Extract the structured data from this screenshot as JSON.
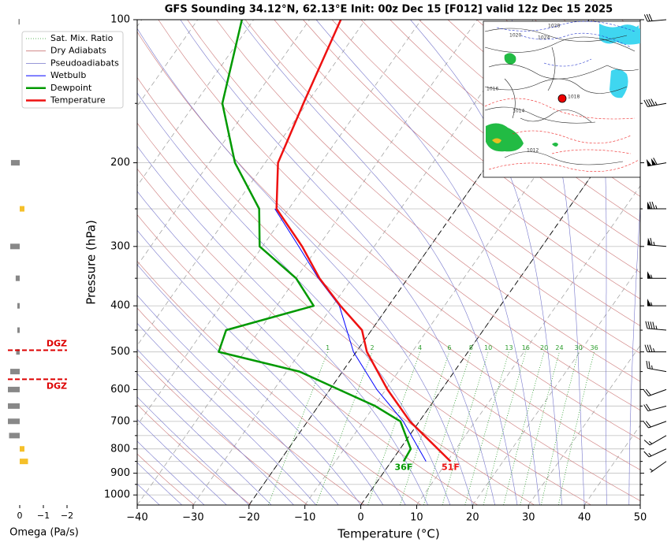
{
  "chart_data": [
    {
      "type": "skewt",
      "title": "GFS Sounding 34.12°N, 62.13°E Init: 00z Dec 15 [F012] valid 12z Dec 15 2025",
      "x_label": "Temperature (°C)",
      "y_label": "Pressure (hPa)",
      "xlim": [
        -40,
        50
      ],
      "xticks": [
        {
          "value": -40,
          "label": "−40"
        },
        {
          "value": -30,
          "label": "−30"
        },
        {
          "value": -20,
          "label": "−20"
        },
        {
          "value": -10,
          "label": "−10"
        },
        0,
        10,
        20,
        30,
        40,
        50
      ],
      "ylim": [
        1050,
        100
      ],
      "log_y": true,
      "yticks": [
        100,
        200,
        300,
        400,
        500,
        600,
        700,
        800,
        900,
        1000
      ],
      "y_minor_ticks": [
        150,
        250,
        350,
        450,
        550,
        650,
        750,
        850,
        950
      ],
      "grid": true,
      "reference_isotherms": [
        -20,
        0
      ],
      "reference_lines": [
        {
          "name": "Sat. Mix. Ratio",
          "color": "#2e9e2e",
          "style": "dotted",
          "values": [
            1,
            2,
            4,
            6,
            8,
            10,
            13,
            16,
            20,
            24,
            30,
            36
          ]
        },
        {
          "name": "Dry Adiabats",
          "color": "#cc7777",
          "style": "solid"
        },
        {
          "name": "Pseudoadiabats",
          "color": "#7777cc",
          "style": "solid"
        }
      ],
      "series": [
        {
          "name": "Wetbulb",
          "color": "#0000ff",
          "width": 1,
          "pressure": [
            850,
            700,
            600,
            500,
            400,
            350,
            300,
            250
          ],
          "values": [
            6.2,
            -2.9,
            -11.6,
            -20.5,
            -28.8,
            -36,
            -43.5,
            -52.5
          ]
        },
        {
          "name": "Dewpoint",
          "color": "#009900",
          "width": 2.5,
          "surface_label": "36F",
          "pressure": [
            850,
            800,
            700,
            650,
            600,
            550,
            500,
            450,
            400,
            350,
            300,
            250,
            200,
            150,
            100
          ],
          "values": [
            2.2,
            1.9,
            -3.4,
            -9.8,
            -18.4,
            -27.7,
            -44.6,
            -46,
            -33.4,
            -40,
            -50.5,
            -55.3,
            -65.4,
            -75.1,
            -82.1
          ]
        },
        {
          "name": "Temperature",
          "color": "#ee1111",
          "width": 2.5,
          "surface_label": "51F",
          "pressure": [
            850,
            700,
            600,
            500,
            450,
            400,
            350,
            300,
            250,
            200,
            150,
            100
          ],
          "values": [
            10.6,
            -1.7,
            -9.7,
            -18.1,
            -21.7,
            -28.6,
            -35.8,
            -42.9,
            -52.2,
            -57.7,
            -60.6,
            -64.4
          ]
        }
      ],
      "wind": {
        "pressure": [
          100,
          150,
          200,
          250,
          300,
          350,
          400,
          450,
          500,
          550,
          600,
          650,
          700,
          750,
          800,
          850
        ],
        "speed": [
          30,
          45,
          110,
          75,
          65,
          55,
          55,
          45,
          35,
          25,
          20,
          20,
          20,
          15,
          15,
          5
        ],
        "direction": [
          265,
          260,
          260,
          270,
          275,
          270,
          270,
          275,
          270,
          280,
          250,
          255,
          250,
          240,
          245,
          235
        ]
      },
      "legend": "upper left",
      "map_labels": [
        "1020",
        "1016",
        "1014",
        "1012",
        "1018",
        "1024",
        "1028"
      ]
    },
    {
      "type": "omega",
      "x_label": "Omega (Pa/s)",
      "xlim": [
        0.5,
        -2.3
      ],
      "xticks": [
        0,
        {
          "value": -1,
          "label": "−1"
        },
        {
          "value": -2,
          "label": "−2"
        }
      ],
      "pressure": [
        101,
        200,
        250,
        300,
        350,
        400,
        450,
        500,
        550,
        600,
        650,
        700,
        750,
        800,
        850
      ],
      "values": [
        0.05,
        0.37,
        -0.2,
        0.4,
        0.17,
        0.1,
        0.1,
        0.15,
        0.4,
        0.5,
        0.5,
        0.5,
        0.45,
        -0.2,
        -0.35
      ],
      "color_positive": "#888888",
      "color_negative": "#f5c02a",
      "dgz": [
        {
          "pressure": 496,
          "label": "DGZ"
        },
        {
          "pressure": 571,
          "label": "DGZ"
        }
      ],
      "dgz_color": "#dd0000"
    }
  ]
}
